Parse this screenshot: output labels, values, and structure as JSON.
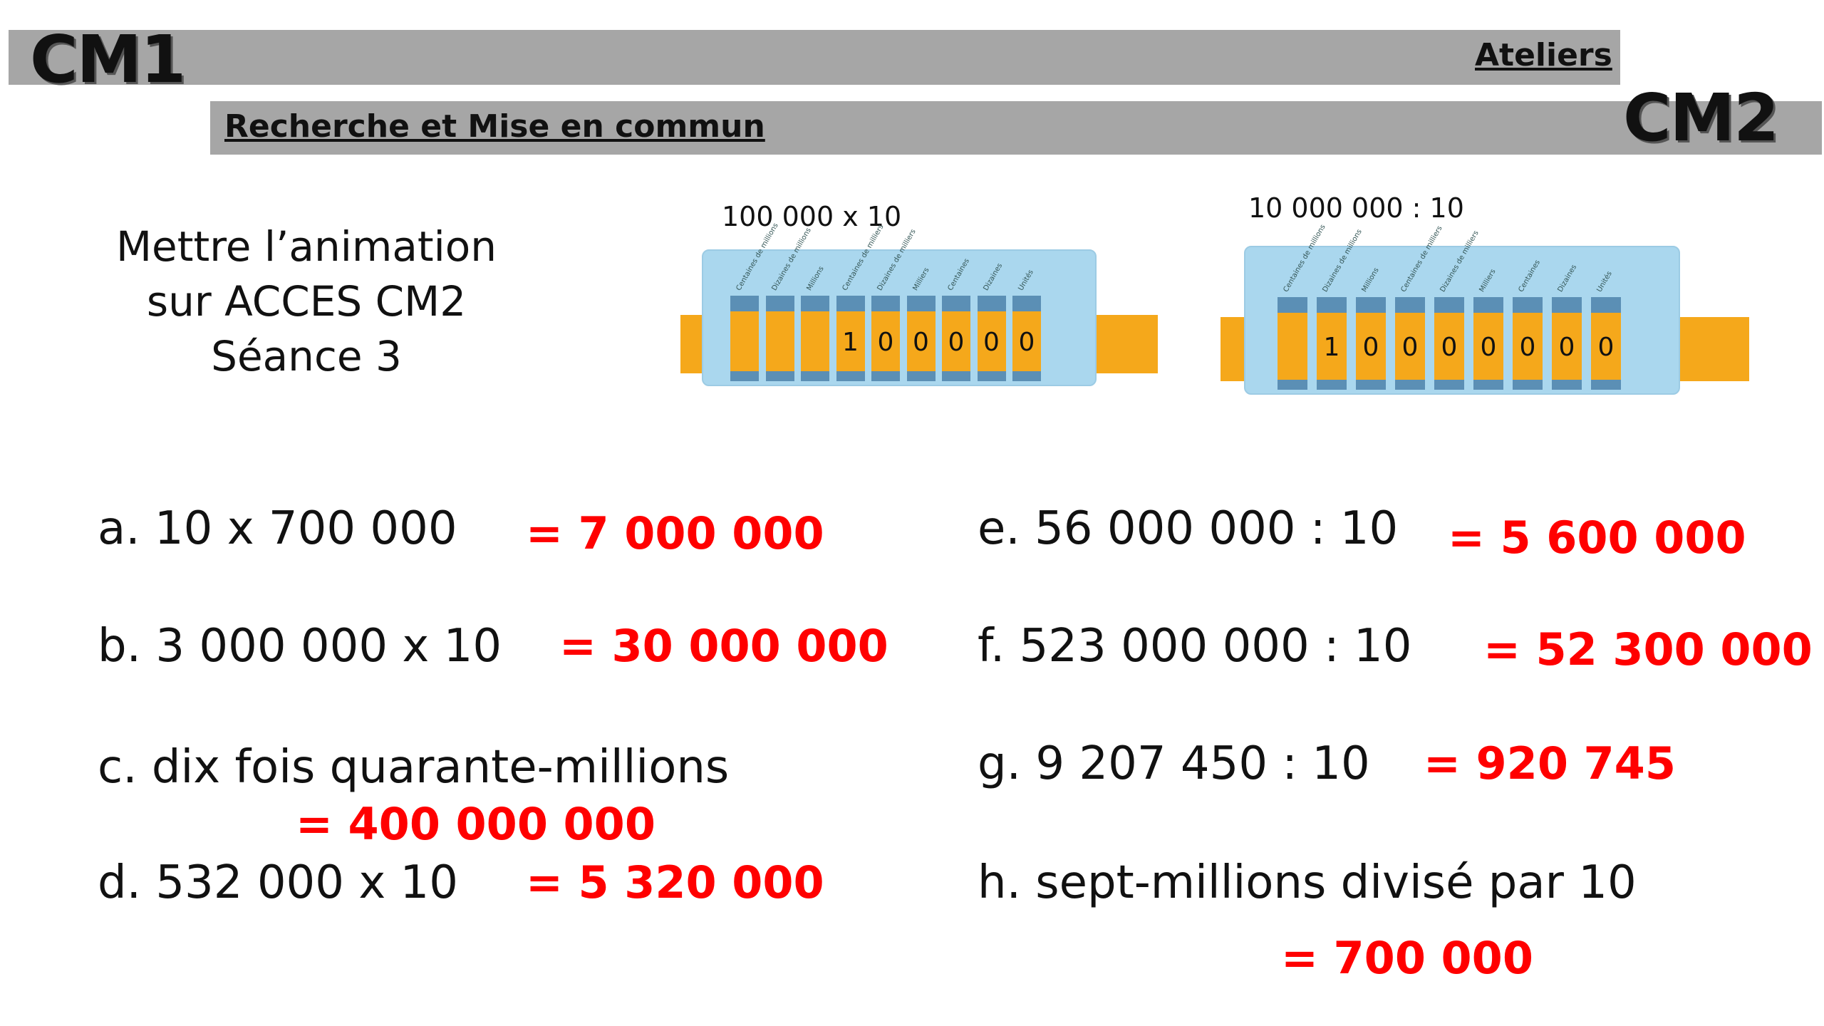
{
  "header": {
    "cm1": "CM1",
    "cm2": "CM2",
    "ateliers": "Ateliers",
    "subtitle": "Recherche et Mise en commun"
  },
  "instruction": {
    "line1": "Mettre l’animation",
    "line2": "sur ACCES CM2",
    "line3": "Séance 3"
  },
  "instruments": {
    "left_label": "100 000  x  10",
    "right_label": "10 000 000  :  10",
    "left_digits": [
      "",
      "",
      "",
      "1",
      "0",
      "0",
      "0",
      "0",
      "0"
    ],
    "right_digits": [
      "",
      "1",
      "0",
      "0",
      "0",
      "0",
      "0",
      "0",
      "0"
    ],
    "headers": [
      "Centaines de millions",
      "Dizaines de millions",
      "Millions",
      "Centaines de milliers",
      "Dizaines de milliers",
      "Milliers",
      "Centaines",
      "Dizaines",
      "Unités"
    ]
  },
  "exercises": [
    {
      "q": "a.  10  x  700 000",
      "a": "= 7 000 000"
    },
    {
      "q": "b.  3 000 000  x  10",
      "a": "= 30 000 000"
    },
    {
      "q": "c.  dix  fois  quarante-millions",
      "a": "= 400 000 000"
    },
    {
      "q": "d.  532 000  x  10",
      "a": "= 5 320 000"
    },
    {
      "q": "e.  56 000 000 :  10",
      "a": "= 5 600 000"
    },
    {
      "q": "f.  523 000 000  :  10",
      "a": "= 52 300 000"
    },
    {
      "q": "g.  9 207 450 :  10",
      "a": "= 920 745"
    },
    {
      "q": "h.  sept-millions  divisé  par  10",
      "a": "= 700 000"
    }
  ],
  "colors": {
    "answer": "#ff0000",
    "bar": "#a6a6a6",
    "instrument_body": "#aad7ee",
    "slider": "#f5a81b"
  }
}
